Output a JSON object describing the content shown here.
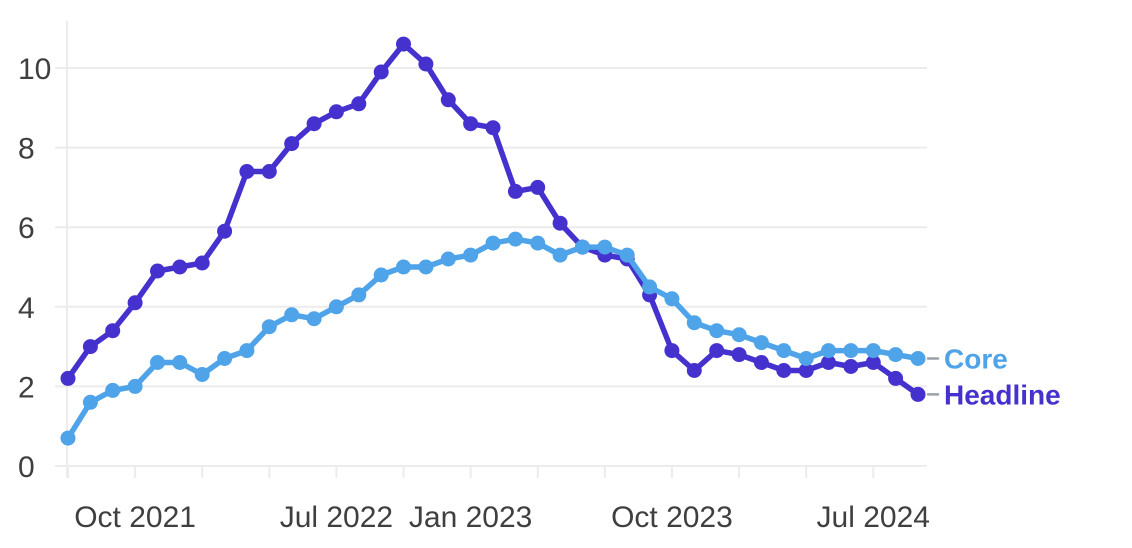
{
  "chart_data": {
    "type": "line",
    "title": "",
    "xlabel": "",
    "ylabel": "",
    "x": [
      "Jul 2021",
      "Aug 2021",
      "Sep 2021",
      "Oct 2021",
      "Nov 2021",
      "Dec 2021",
      "Jan 2022",
      "Feb 2022",
      "Mar 2022",
      "Apr 2022",
      "May 2022",
      "Jun 2022",
      "Jul 2022",
      "Aug 2022",
      "Sep 2022",
      "Oct 2022",
      "Nov 2022",
      "Dec 2022",
      "Jan 2023",
      "Feb 2023",
      "Mar 2023",
      "Apr 2023",
      "May 2023",
      "Jun 2023",
      "Jul 2023",
      "Aug 2023",
      "Sep 2023",
      "Oct 2023",
      "Nov 2023",
      "Dec 2023",
      "Jan 2024",
      "Feb 2024",
      "Mar 2024",
      "Apr 2024",
      "May 2024",
      "Jun 2024",
      "Jul 2024",
      "Aug 2024",
      "Sep 2024"
    ],
    "series": [
      {
        "name": "Headline",
        "color": "#4531cd",
        "values": [
          2.2,
          3.0,
          3.4,
          4.1,
          4.9,
          5.0,
          5.1,
          5.9,
          7.4,
          7.4,
          8.1,
          8.6,
          8.9,
          9.1,
          9.9,
          10.6,
          10.1,
          9.2,
          8.6,
          8.5,
          6.9,
          7.0,
          6.1,
          5.5,
          5.3,
          5.2,
          4.3,
          2.9,
          2.4,
          2.9,
          2.8,
          2.6,
          2.4,
          2.4,
          2.6,
          2.5,
          2.6,
          2.2,
          1.8
        ]
      },
      {
        "name": "Core",
        "color": "#4fa3e8",
        "values": [
          0.7,
          1.6,
          1.9,
          2.0,
          2.6,
          2.6,
          2.3,
          2.7,
          2.9,
          3.5,
          3.8,
          3.7,
          4.0,
          4.3,
          4.8,
          5.0,
          5.0,
          5.2,
          5.3,
          5.6,
          5.7,
          5.6,
          5.3,
          5.5,
          5.5,
          5.3,
          4.5,
          4.2,
          3.6,
          3.4,
          3.3,
          3.1,
          2.9,
          2.7,
          2.9,
          2.9,
          2.9,
          2.8,
          2.7
        ]
      }
    ],
    "ylim": [
      0,
      10
    ],
    "yticks": [
      0,
      2,
      4,
      6,
      8,
      10
    ],
    "ytick_labels": [
      "0",
      "2",
      "4",
      "6",
      "8",
      "10"
    ],
    "xtick_every_months": 3,
    "xtick_labels": [
      {
        "index": 3,
        "label": "Oct 2021"
      },
      {
        "index": 12,
        "label": "Jul 2022"
      },
      {
        "index": 18,
        "label": "Jan 2023"
      },
      {
        "index": 27,
        "label": "Oct 2023"
      },
      {
        "index": 36,
        "label": "Jul 2024"
      }
    ],
    "grid": "horizontal",
    "legend_position": "right-of-last-point",
    "legend": [
      "Core",
      "Headline"
    ]
  },
  "style": {
    "background": "#ffffff",
    "grid_color": "#ececec",
    "axis_label_color": "#3f3f3f",
    "legend_dash_color": "#9aa1aa",
    "headline_color": "#4531cd",
    "core_color": "#4fa3e8"
  }
}
